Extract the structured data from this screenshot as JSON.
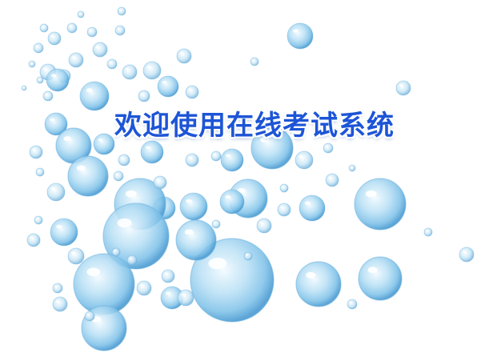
{
  "welcome": {
    "title": "欢迎使用在线考试系统"
  },
  "colors": {
    "title": "#1d55d6",
    "bubble_core": "#9fd2ef",
    "bubble_edge": "#5aa8d8",
    "background": "#ffffff"
  }
}
